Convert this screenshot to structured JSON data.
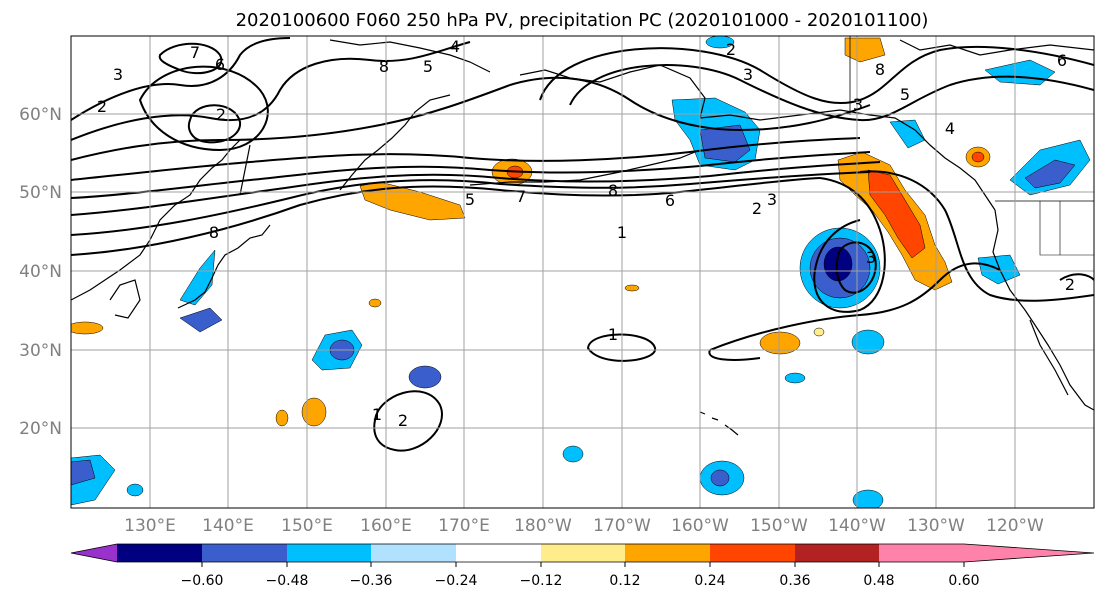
{
  "title": "2020100600 F060 250 hPa PV, precipitation PC (2020101000 - 2020101100)",
  "lat_labels": [
    "60°N",
    "50°N",
    "40°N",
    "30°N",
    "20°N"
  ],
  "lon_labels": [
    "130°E",
    "140°E",
    "150°E",
    "160°E",
    "170°E",
    "180°W",
    "170°W",
    "160°W",
    "150°W",
    "140°W",
    "130°W",
    "120°W"
  ],
  "colorbar": {
    "colors": [
      "#9932cc",
      "#000080",
      "#3a5fcd",
      "#00bfff",
      "#b0e2ff",
      "#ffffff",
      "#ffec8b",
      "#ffa500",
      "#ff4500",
      "#b22222",
      "#ff82ab"
    ],
    "tick_labels": [
      "−0.60",
      "−0.48",
      "−0.36",
      "−0.24",
      "−0.12",
      "0.12",
      "0.24",
      "0.36",
      "0.48",
      "0.60"
    ]
  },
  "contour_labels": [
    "7",
    "6",
    "3",
    "2",
    "2",
    "8",
    "8",
    "5",
    "4",
    "2",
    "3",
    "5",
    "7",
    "8",
    "6",
    "2",
    "3",
    "1",
    "8",
    "5",
    "4",
    "6",
    "3",
    "1",
    "1",
    "2",
    "3",
    "2"
  ],
  "colors": {
    "grid": "#a0a0a0",
    "axis_text": "#808080",
    "contour": "#000000"
  }
}
